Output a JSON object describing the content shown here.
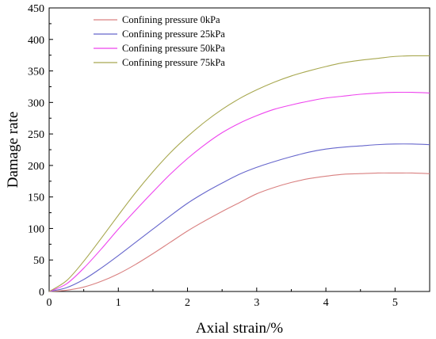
{
  "chart_data": {
    "type": "line",
    "xlabel": "Axial strain/%",
    "ylabel": "Damage rate",
    "xlim": [
      0,
      5.5
    ],
    "ylim": [
      0,
      450
    ],
    "xticks": [
      0,
      1,
      2,
      3,
      4,
      5
    ],
    "yticks": [
      0,
      50,
      100,
      150,
      200,
      250,
      300,
      350,
      400,
      450
    ],
    "grid": false,
    "legend_position": "top-left",
    "x": [
      0,
      0.25,
      0.5,
      0.75,
      1.0,
      1.25,
      1.5,
      1.75,
      2.0,
      2.25,
      2.5,
      2.75,
      3.0,
      3.25,
      3.5,
      3.75,
      4.0,
      4.25,
      4.5,
      4.75,
      5.0,
      5.25,
      5.5
    ],
    "series": [
      {
        "name": "Confining pressure 0kPa",
        "color": "#d98080",
        "values": [
          0,
          2,
          7,
          16,
          28,
          43,
          60,
          78,
          96,
          112,
          127,
          141,
          155,
          165,
          173,
          179,
          183,
          186,
          187,
          188,
          188,
          188,
          187
        ]
      },
      {
        "name": "Confining pressure 25kPa",
        "color": "#6666cc",
        "values": [
          0,
          6,
          19,
          37,
          57,
          78,
          99,
          120,
          140,
          157,
          172,
          186,
          197,
          206,
          214,
          221,
          226,
          229,
          231,
          233,
          234,
          234,
          233
        ]
      },
      {
        "name": "Confining pressure 50kPa",
        "color": "#ee44ee",
        "values": [
          0,
          12,
          37,
          67,
          99,
          129,
          158,
          186,
          211,
          233,
          252,
          267,
          279,
          289,
          296,
          302,
          307,
          310,
          313,
          315,
          316,
          316,
          315
        ]
      },
      {
        "name": "Confining pressure 75kPa",
        "color": "#a8a850",
        "values": [
          0,
          17,
          48,
          84,
          121,
          157,
          190,
          220,
          246,
          269,
          289,
          306,
          320,
          332,
          342,
          350,
          357,
          363,
          367,
          370,
          373,
          374,
          374
        ]
      }
    ]
  }
}
